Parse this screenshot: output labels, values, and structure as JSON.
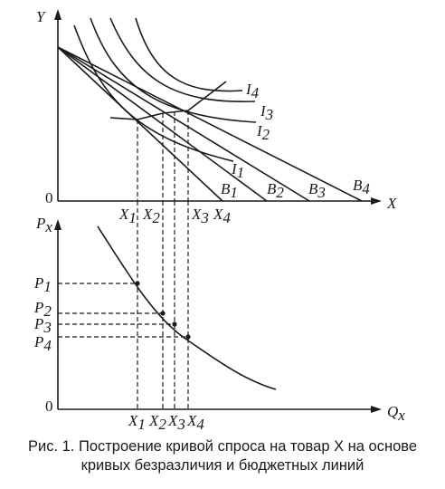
{
  "top_panel": {
    "y_axis_label": "Y",
    "x_axis_label": "X",
    "origin_label": "0",
    "indifference_curves": [
      {
        "name": "I",
        "sub": "1"
      },
      {
        "name": "I",
        "sub": "2"
      },
      {
        "name": "I",
        "sub": "3"
      },
      {
        "name": "I",
        "sub": "4"
      }
    ],
    "budget_lines": [
      {
        "name": "B",
        "sub": "1"
      },
      {
        "name": "B",
        "sub": "2"
      },
      {
        "name": "B",
        "sub": "3"
      },
      {
        "name": "B",
        "sub": "4"
      }
    ],
    "quantities": [
      {
        "name": "X",
        "sub": "1"
      },
      {
        "name": "X",
        "sub": "2"
      },
      {
        "name": "X",
        "sub": "3"
      },
      {
        "name": "X",
        "sub": "4"
      }
    ]
  },
  "bottom_panel": {
    "y_axis_label": {
      "name": "P",
      "sub": "x"
    },
    "x_axis_label": {
      "name": "Q",
      "sub": "x"
    },
    "origin_label": "0",
    "prices": [
      {
        "name": "P",
        "sub": "1"
      },
      {
        "name": "P",
        "sub": "2"
      },
      {
        "name": "P",
        "sub": "3"
      },
      {
        "name": "P",
        "sub": "4"
      }
    ],
    "quantities": [
      {
        "name": "X",
        "sub": "1"
      },
      {
        "name": "X",
        "sub": "2"
      },
      {
        "name": "X",
        "sub": "3"
      },
      {
        "name": "X",
        "sub": "4"
      }
    ]
  },
  "caption": {
    "line1": "Рис. 1. Построение кривой спроса на товар X на основе",
    "line2": "кривых безразличия и бюджетных линий"
  },
  "colors": {
    "ink": "#1a1a1a",
    "background": "#ffffff"
  }
}
